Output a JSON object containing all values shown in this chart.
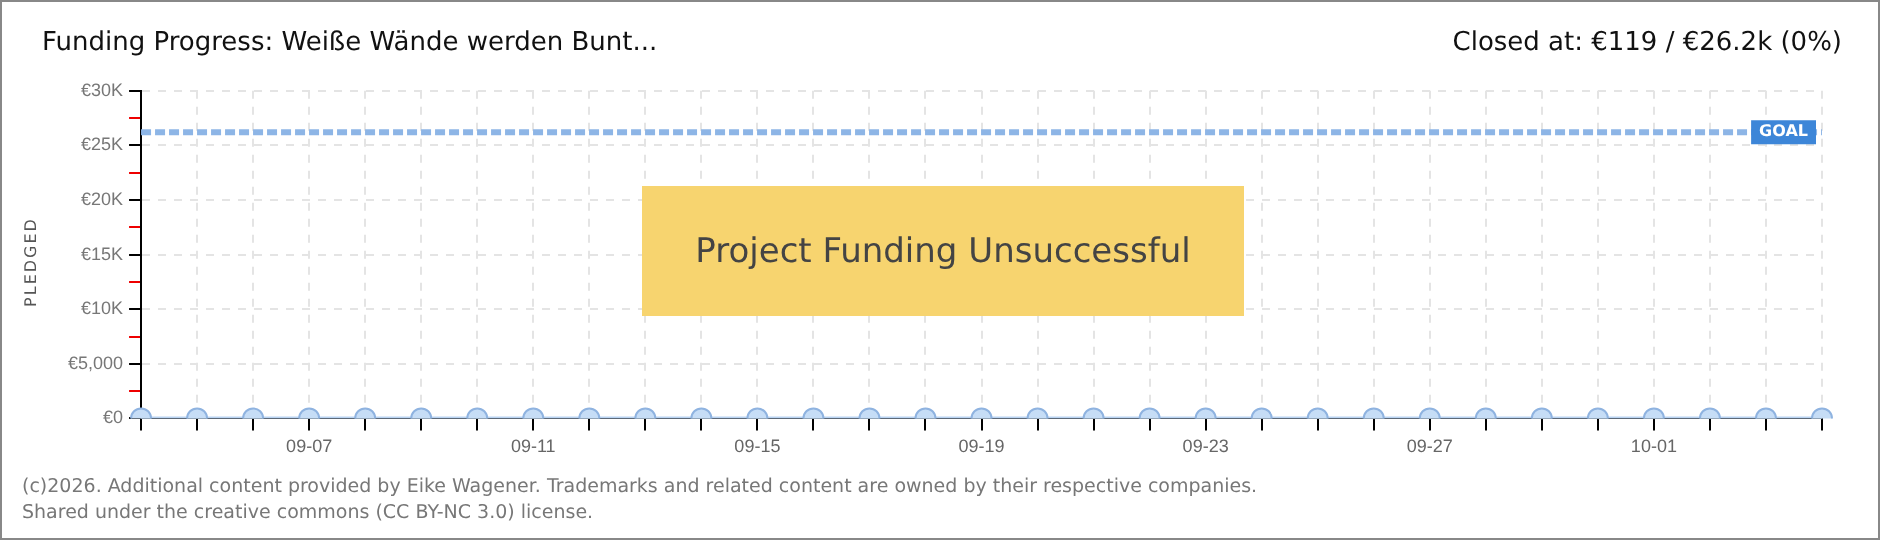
{
  "chart_data": {
    "type": "line",
    "title": "Funding Progress: Weiße Wände werden Bunt...",
    "subtitle": "Closed at: €119 / €26.2k (0%)",
    "ylabel": "PLEDGED",
    "categories": [
      null,
      null,
      null,
      "09-07",
      null,
      null,
      null,
      "09-11",
      null,
      null,
      null,
      "09-15",
      null,
      null,
      null,
      "09-19",
      null,
      null,
      null,
      "09-23",
      null,
      null,
      null,
      "09-27",
      null,
      null,
      null,
      "10-01",
      null,
      null,
      null
    ],
    "series": [
      {
        "color": "#b9d3f2",
        "values": [
          0,
          0,
          0,
          0,
          0,
          0,
          0,
          0,
          0,
          0,
          0,
          0,
          0,
          0,
          0,
          0,
          0,
          0,
          0,
          0,
          0,
          0,
          0,
          0,
          0,
          0,
          0,
          0,
          0,
          0,
          0
        ]
      }
    ],
    "ylim": [
      0,
      30000
    ],
    "yticks": [
      {
        "value": 0,
        "label": "€0"
      },
      {
        "value": 2500,
        "label": null
      },
      {
        "value": 5000,
        "label": "€5,000"
      },
      {
        "value": 7500,
        "label": null
      },
      {
        "value": 10000,
        "label": "€10K"
      },
      {
        "value": 12500,
        "label": null
      },
      {
        "value": 15000,
        "label": "€15K"
      },
      {
        "value": 17500,
        "label": null
      },
      {
        "value": 20000,
        "label": "€20K"
      },
      {
        "value": 22500,
        "label": null
      },
      {
        "value": 25000,
        "label": "€25K"
      },
      {
        "value": 27500,
        "label": null
      },
      {
        "value": 30000,
        "label": "€30K"
      }
    ],
    "ref_lines": [
      {
        "axis": "y",
        "value": 26200,
        "label": "GOAL",
        "color": "#8db5e6",
        "line_style": "dashed"
      }
    ],
    "annotations": [
      "Project Funding Unsuccessful",
      "(c)2026. Additional content provided by Eike Wagener. Trademarks and related content are owned by their respective companies.",
      "Shared under the creative commons (CC BY-NC 3.0) license."
    ],
    "grid": true,
    "legend": false,
    "marker": "circle",
    "line_style": "solid"
  }
}
